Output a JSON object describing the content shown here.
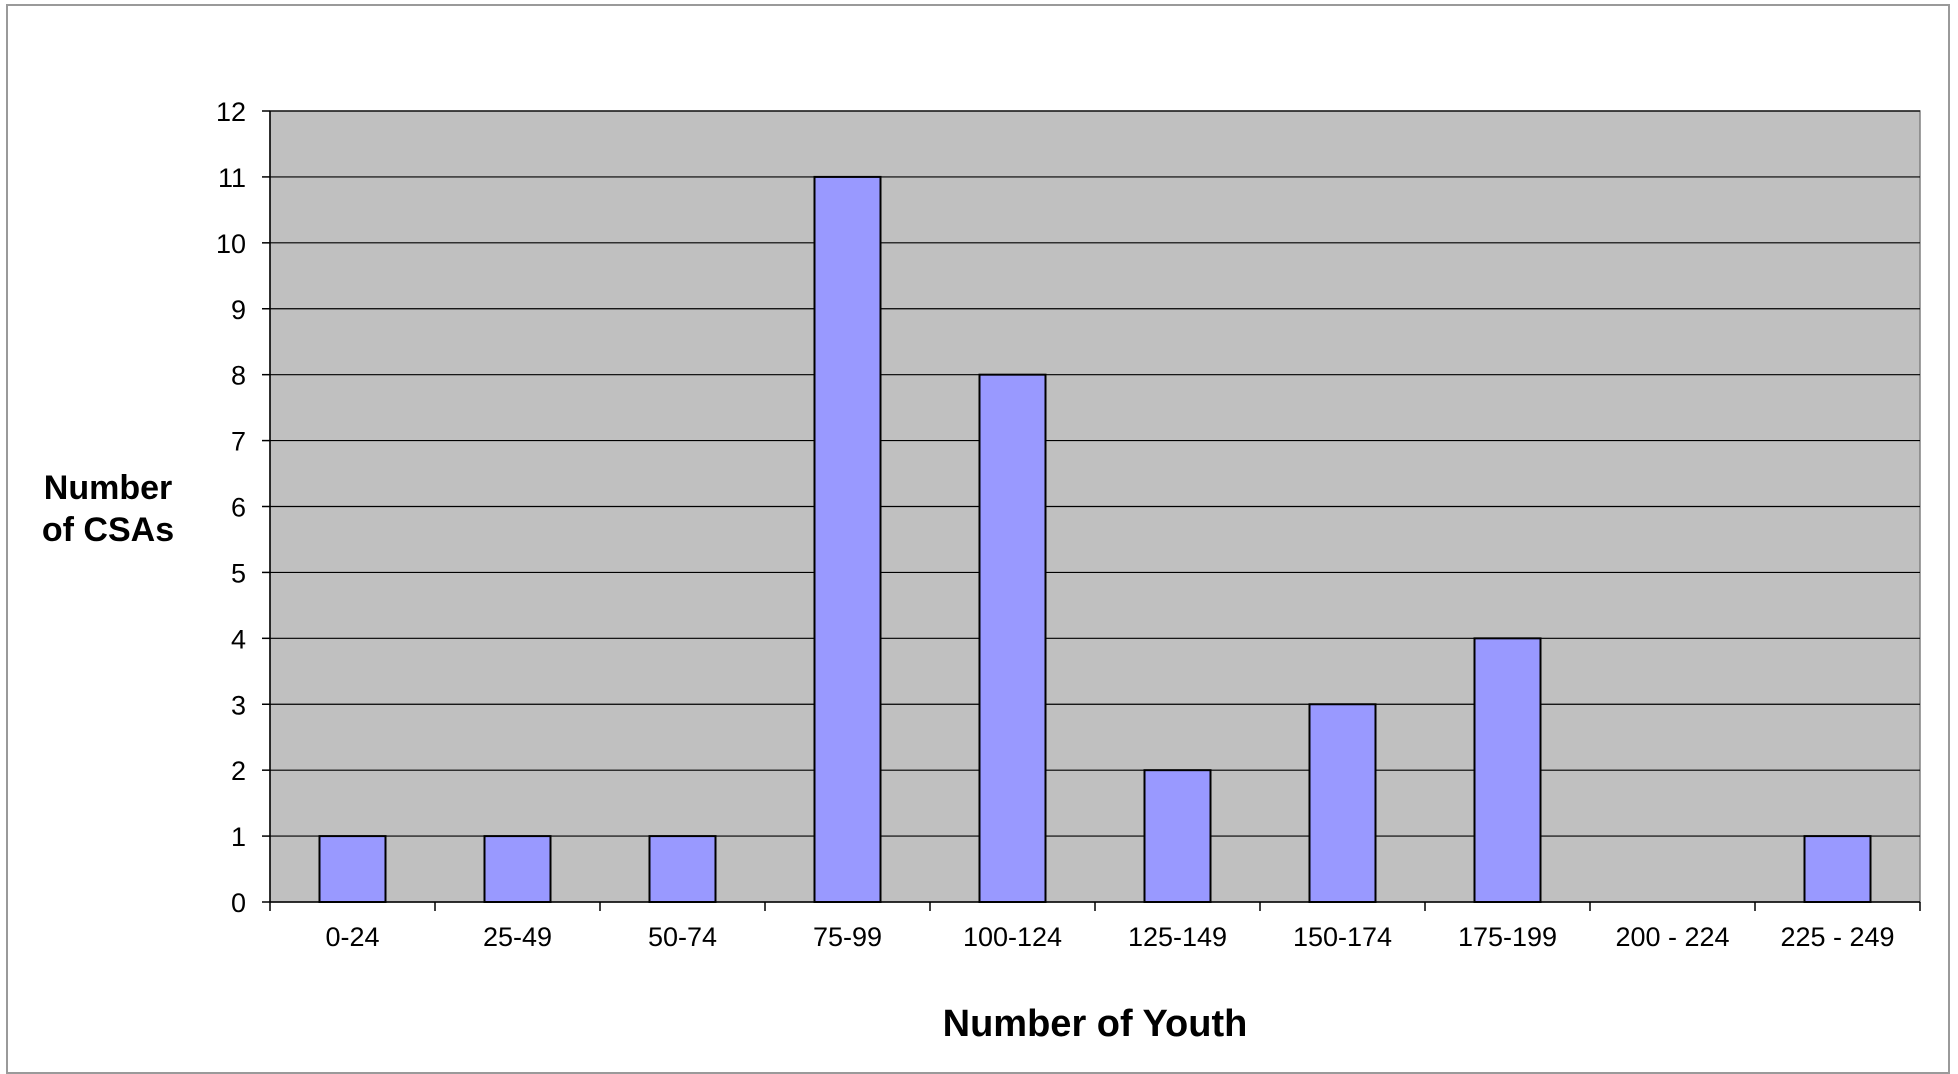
{
  "chart_data": {
    "type": "bar",
    "title": "",
    "xlabel": "Number of Youth",
    "ylabel_lines": [
      "Number",
      "of CSAs"
    ],
    "categories": [
      "0-24",
      "25-49",
      "50-74",
      "75-99",
      "100-124",
      "125-149",
      "150-174",
      "175-199",
      "200 - 224",
      "225 - 249"
    ],
    "values": [
      1,
      1,
      1,
      11,
      8,
      2,
      3,
      4,
      0,
      1
    ],
    "ylim": [
      0,
      12
    ],
    "yticks": [
      0,
      1,
      2,
      3,
      4,
      5,
      6,
      7,
      8,
      9,
      10,
      11,
      12
    ],
    "grid": true,
    "legend": "none",
    "colors": {
      "plot_background": "#c0c0c0",
      "bar_fill": "#9999ff",
      "bar_stroke": "#000000",
      "gridline": "#000000"
    }
  }
}
